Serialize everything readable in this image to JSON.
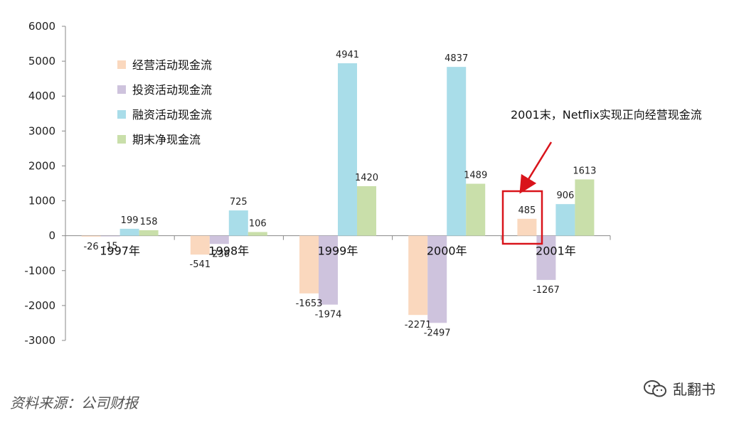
{
  "chart_data": {
    "type": "bar",
    "categories": [
      "1997年",
      "1998年",
      "1999年",
      "2000年",
      "2001年"
    ],
    "series": [
      {
        "name": "经营活动现金流",
        "color": "#FAD8BE",
        "values": [
          -26,
          -541,
          -1653,
          -2271,
          485
        ]
      },
      {
        "name": "投资活动现金流",
        "color": "#CEC3DD",
        "values": [
          -15,
          -236,
          -1974,
          -2497,
          -1267
        ]
      },
      {
        "name": "融资活动现金流",
        "color": "#A9DDE9",
        "values": [
          199,
          725,
          4941,
          4837,
          906
        ]
      },
      {
        "name": "期末净现金流",
        "color": "#C9DFAA",
        "values": [
          158,
          106,
          1420,
          1489,
          1613
        ]
      }
    ],
    "yticks": [
      6000,
      5000,
      4000,
      3000,
      2000,
      1000,
      0,
      -1000,
      -2000,
      -3000
    ],
    "ylim": [
      -3000,
      6000
    ],
    "legend_position": "top-left",
    "annotation": {
      "text": "2001末，Netflix实现正向经营现金流",
      "highlight_color": "#D9141B"
    }
  },
  "source_text": "资料来源：公司财报",
  "watermark": {
    "icon": "wechat-icon",
    "text": "乱翻书"
  }
}
